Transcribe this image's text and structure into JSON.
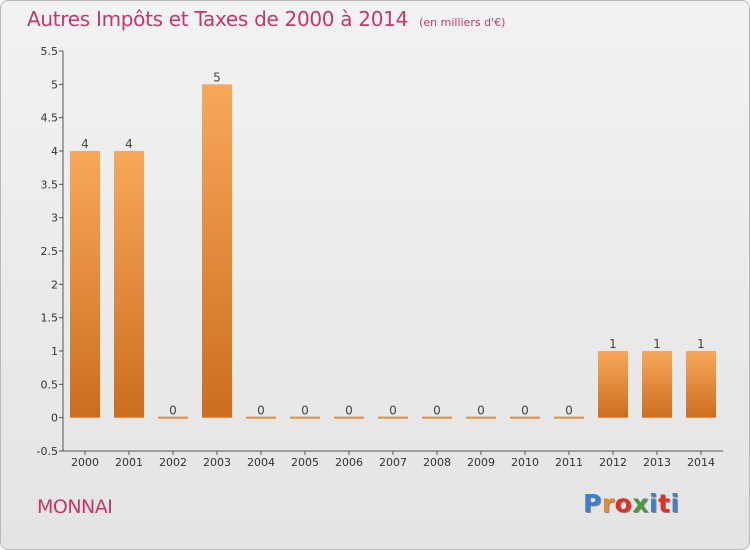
{
  "page": {
    "title": "Autres Impôts et Taxes de 2000 à 2014",
    "unit_note": "(en milliers d'€)",
    "commune": "MONNAI",
    "logo": "Proxiti"
  },
  "colors": {
    "title": "#c0396a",
    "bar_top": "#f8a85a",
    "bar_bottom": "#cd6d1e",
    "zero_line": "#e48a3a",
    "logo_letters": [
      "#3d7fc9",
      "#e58a2a",
      "#e0302a",
      "#4a9a3a",
      "#3d7fc9",
      "#e0302a",
      "#3d7fc9"
    ]
  },
  "chart_data": {
    "type": "bar",
    "title": "Autres Impôts et Taxes de 2000 à 2014",
    "subtitle": "(en milliers d'€)",
    "categories": [
      "2000",
      "2001",
      "2002",
      "2003",
      "2004",
      "2005",
      "2006",
      "2007",
      "2008",
      "2009",
      "2010",
      "2011",
      "2012",
      "2013",
      "2014"
    ],
    "values": [
      4,
      4,
      0,
      5,
      0,
      0,
      0,
      0,
      0,
      0,
      0,
      0,
      1,
      1,
      1
    ],
    "ylim": [
      -0.5,
      5.5
    ],
    "yticks": [
      "-0.5",
      "0",
      "0.5",
      "1",
      "1.5",
      "2",
      "2.5",
      "3",
      "3.5",
      "4",
      "4.5",
      "5",
      "5.5"
    ],
    "grid": false,
    "data_labels": true
  }
}
